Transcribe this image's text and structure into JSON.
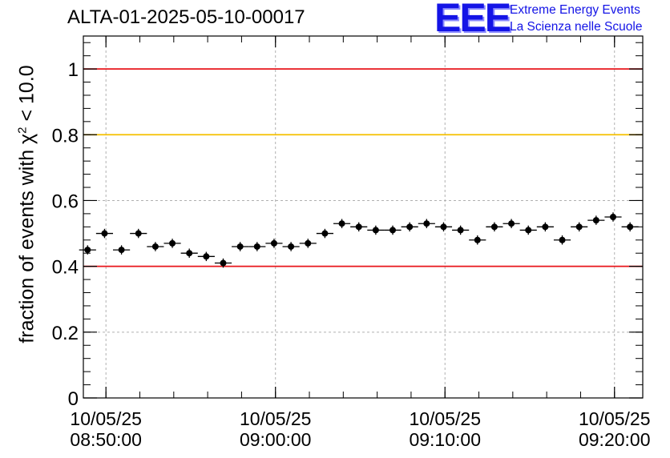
{
  "chart_data": {
    "type": "scatter",
    "title": "ALTA-01-2025-05-10-00017",
    "ylabel_text": "fraction of events with",
    "ylabel_chi": "χ",
    "ylabel_sup": "2",
    "ylabel_cut": " < 10.0",
    "xlabel": "",
    "ylim": [
      0,
      1.1
    ],
    "yticks": [
      0,
      0.2,
      0.4,
      0.6,
      0.8,
      1
    ],
    "ytick_labels": [
      "0",
      "0.2",
      "0.4",
      "0.6",
      "0.8",
      "1"
    ],
    "xlim": [
      "10/05/25 08:48:40",
      "10/05/25 09:21:40"
    ],
    "xticks": [
      {
        "time": "08:50:00",
        "date": "10/05/25"
      },
      {
        "time": "09:00:00",
        "date": "10/05/25"
      },
      {
        "time": "09:10:00",
        "date": "10/05/25"
      },
      {
        "time": "09:20:00",
        "date": "10/05/25"
      }
    ],
    "grid": true,
    "reference_lines": [
      {
        "y": 1.0,
        "color": "#e8161b"
      },
      {
        "y": 0.8,
        "color": "#f5c000"
      },
      {
        "y": 0.4,
        "color": "#e8161b"
      }
    ],
    "bin_width_s": 60,
    "series": [
      {
        "marker_color": "#000000",
        "x": [
          "08:48:55",
          "08:49:55",
          "08:50:55",
          "08:51:55",
          "08:52:55",
          "08:53:55",
          "08:54:55",
          "08:55:55",
          "08:56:55",
          "08:57:55",
          "08:58:55",
          "08:59:55",
          "09:00:55",
          "09:01:55",
          "09:02:55",
          "09:03:55",
          "09:04:55",
          "09:05:55",
          "09:06:55",
          "09:07:55",
          "09:08:55",
          "09:09:55",
          "09:10:55",
          "09:11:55",
          "09:12:55",
          "09:13:55",
          "09:14:55",
          "09:15:55",
          "09:16:55",
          "09:17:55",
          "09:18:55",
          "09:19:55",
          "09:20:55"
        ],
        "y": [
          0.45,
          0.5,
          0.45,
          0.5,
          0.46,
          0.47,
          0.44,
          0.43,
          0.41,
          0.46,
          0.46,
          0.47,
          0.46,
          0.47,
          0.5,
          0.53,
          0.52,
          0.51,
          0.51,
          0.52,
          0.53,
          0.52,
          0.51,
          0.48,
          0.52,
          0.53,
          0.51,
          0.52,
          0.48,
          0.52,
          0.54,
          0.55,
          0.52
        ],
        "err": [
          0.014,
          0.014,
          0.014,
          0.014,
          0.014,
          0.014,
          0.014,
          0.014,
          0.014,
          0.014,
          0.014,
          0.014,
          0.014,
          0.014,
          0.014,
          0.014,
          0.014,
          0.014,
          0.014,
          0.014,
          0.014,
          0.014,
          0.014,
          0.014,
          0.014,
          0.014,
          0.014,
          0.014,
          0.014,
          0.014,
          0.014,
          0.014,
          0.014
        ]
      }
    ]
  },
  "logo": {
    "mark": "EEE",
    "line1": "Extreme Energy Events",
    "line2": "La Scienza nelle Scuole"
  }
}
